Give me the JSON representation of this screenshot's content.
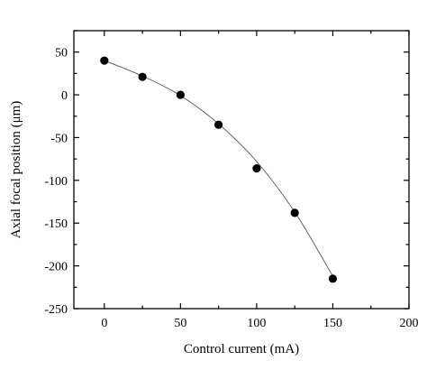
{
  "chart_data": {
    "type": "scatter",
    "xlabel": "Control current (mA)",
    "ylabel": "Axial focal position (μm)",
    "xlim": [
      -20,
      200
    ],
    "ylim": [
      -250,
      75
    ],
    "x_ticks": [
      0,
      50,
      100,
      150,
      200
    ],
    "y_ticks": [
      50,
      0,
      -50,
      -100,
      -150,
      -200,
      -250
    ],
    "x_minor_step": 25,
    "y_minor_step": 25,
    "grid": false,
    "series": [
      {
        "marker": "filled-circle",
        "color": "#000000",
        "points": [
          {
            "x": 0,
            "y": 40
          },
          {
            "x": 25,
            "y": 21
          },
          {
            "x": 50,
            "y": 0
          },
          {
            "x": 75,
            "y": -35
          },
          {
            "x": 100,
            "y": -86
          },
          {
            "x": 125,
            "y": -138
          },
          {
            "x": 150,
            "y": -215
          }
        ],
        "fit_line": {
          "color": "#555555",
          "points": [
            {
              "x": 0,
              "y": 40
            },
            {
              "x": 25,
              "y": 22
            },
            {
              "x": 50,
              "y": -1
            },
            {
              "x": 75,
              "y": -34
            },
            {
              "x": 100,
              "y": -78
            },
            {
              "x": 125,
              "y": -137
            },
            {
              "x": 150,
              "y": -212
            }
          ]
        }
      }
    ]
  }
}
